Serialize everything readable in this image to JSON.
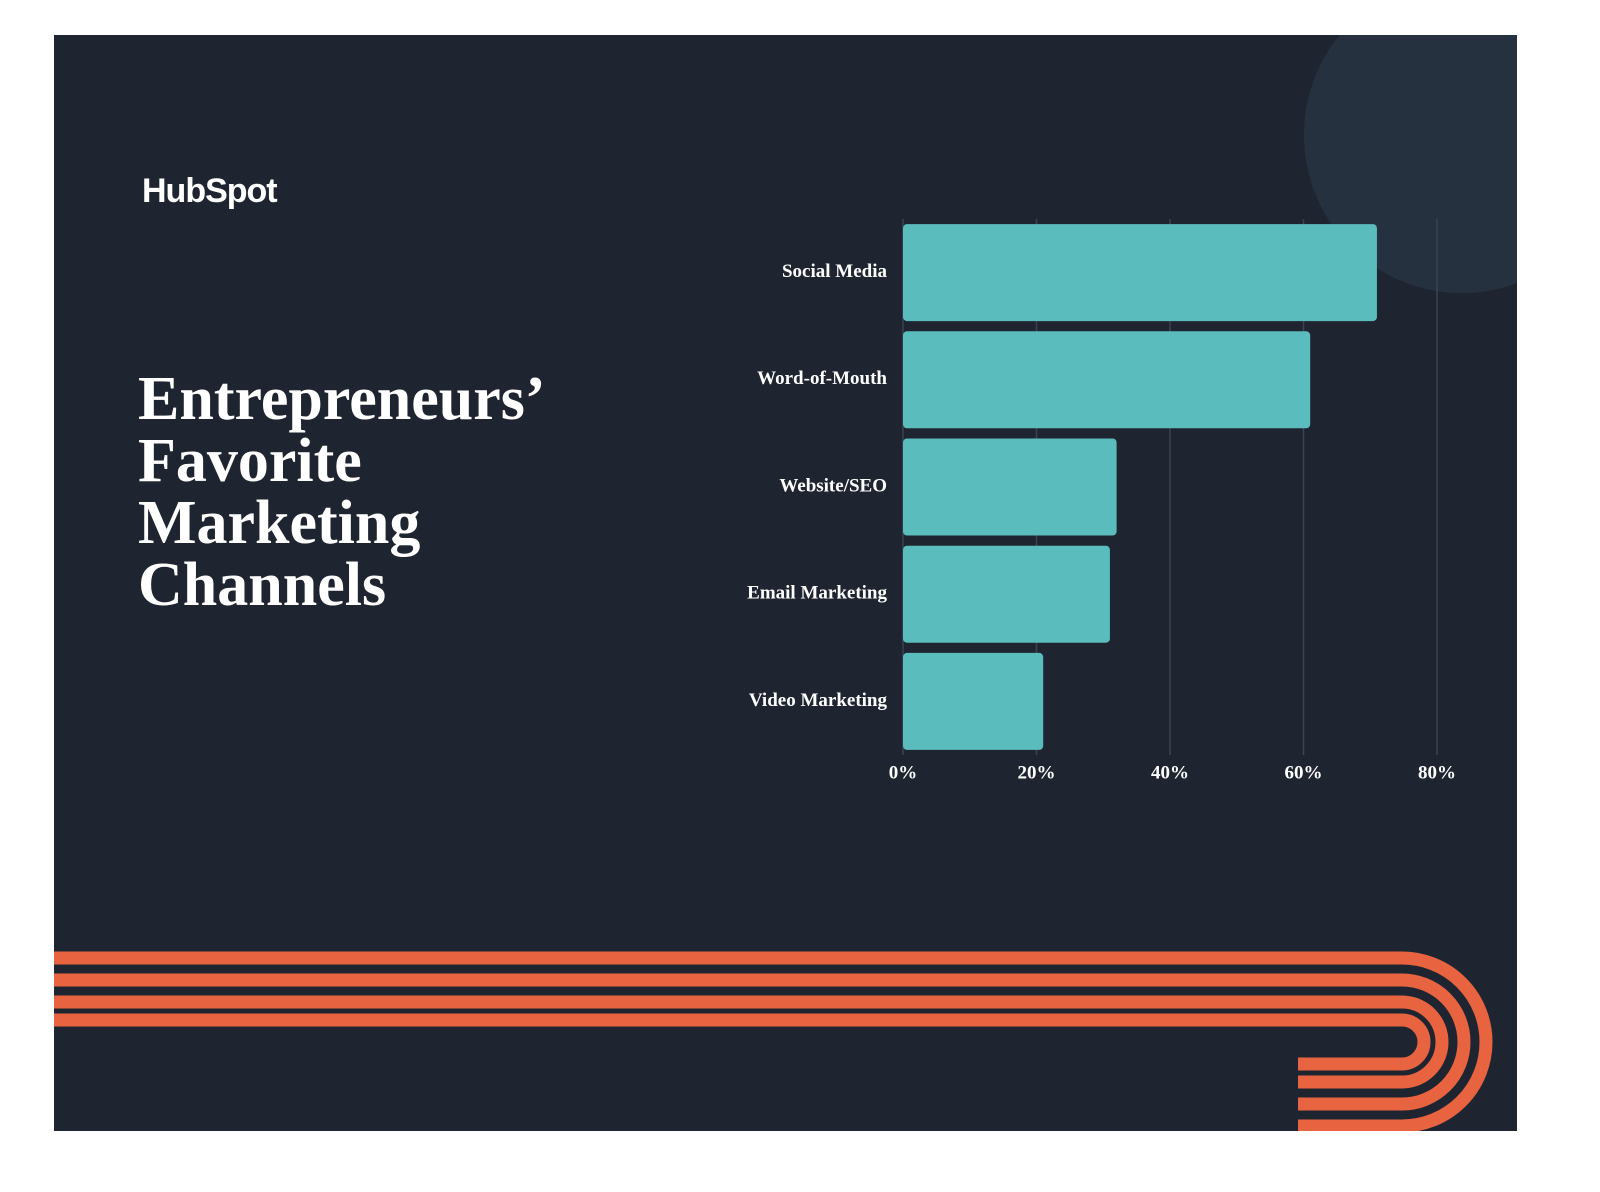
{
  "brand": "HubSpot",
  "chart_data": {
    "type": "hbar",
    "title": "Entrepreneurs’ Favorite Marketing Channels",
    "categories": [
      "Social Media",
      "Word-of-Mouth",
      "Website/SEO",
      "Email Marketing",
      "Video Marketing"
    ],
    "values": [
      71,
      61,
      32,
      31,
      21
    ],
    "color": "#5bbcbd",
    "xlim": [
      0,
      80
    ],
    "xticks": [
      {
        "value": 0,
        "label": "0%"
      },
      {
        "value": 20,
        "label": "20%"
      },
      {
        "value": 40,
        "label": "40%"
      },
      {
        "value": 60,
        "label": "60%"
      },
      {
        "value": 80,
        "label": "80%"
      }
    ],
    "grid": true
  }
}
